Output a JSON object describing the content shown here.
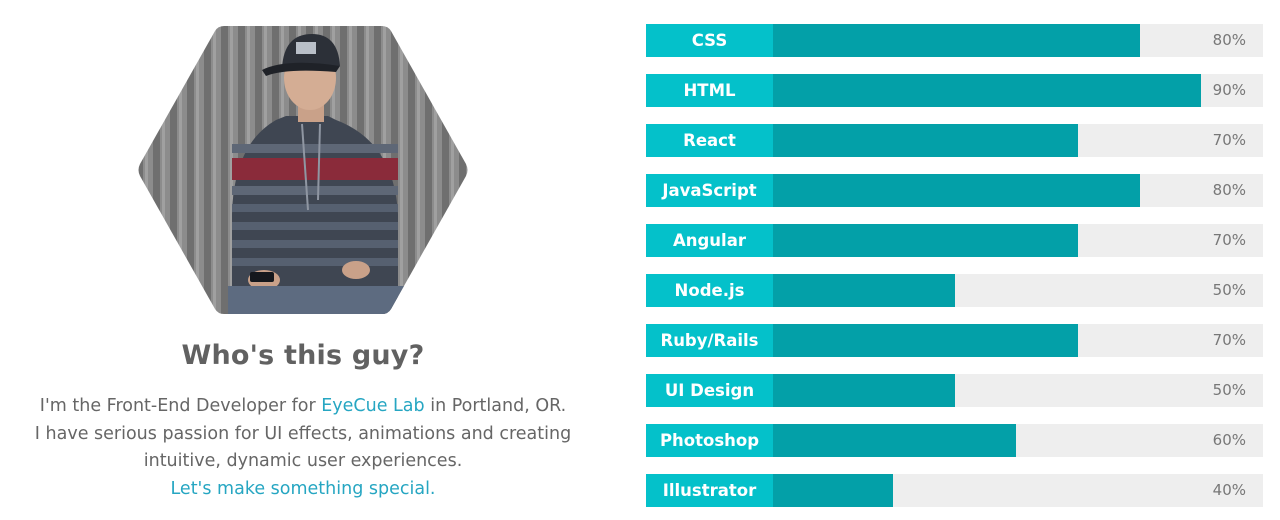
{
  "about": {
    "title": "Who's this guy?",
    "line1_pre": "I'm the Front-End Developer for ",
    "line1_link": "EyeCue Lab",
    "line1_post": " in Portland, OR.",
    "line2": "I have serious passion for UI effects, animations and creating",
    "line3": "intuitive, dynamic user experiences.",
    "cta": "Let's make something special."
  },
  "colors": {
    "label_bg": "#04c1ca",
    "fill": "#03a0a8",
    "track": "#eeeeee",
    "link": "#26a6c2"
  },
  "skills": [
    {
      "name": "CSS",
      "percent": 80,
      "percent_label": "80%"
    },
    {
      "name": "HTML",
      "percent": 90,
      "percent_label": "90%"
    },
    {
      "name": "React",
      "percent": 70,
      "percent_label": "70%"
    },
    {
      "name": "JavaScript",
      "percent": 80,
      "percent_label": "80%"
    },
    {
      "name": "Angular",
      "percent": 70,
      "percent_label": "70%"
    },
    {
      "name": "Node.js",
      "percent": 50,
      "percent_label": "50%"
    },
    {
      "name": "Ruby/Rails",
      "percent": 70,
      "percent_label": "70%"
    },
    {
      "name": "UI Design",
      "percent": 50,
      "percent_label": "50%"
    },
    {
      "name": "Photoshop",
      "percent": 60,
      "percent_label": "60%"
    },
    {
      "name": "Illustrator",
      "percent": 40,
      "percent_label": "40%"
    }
  ]
}
